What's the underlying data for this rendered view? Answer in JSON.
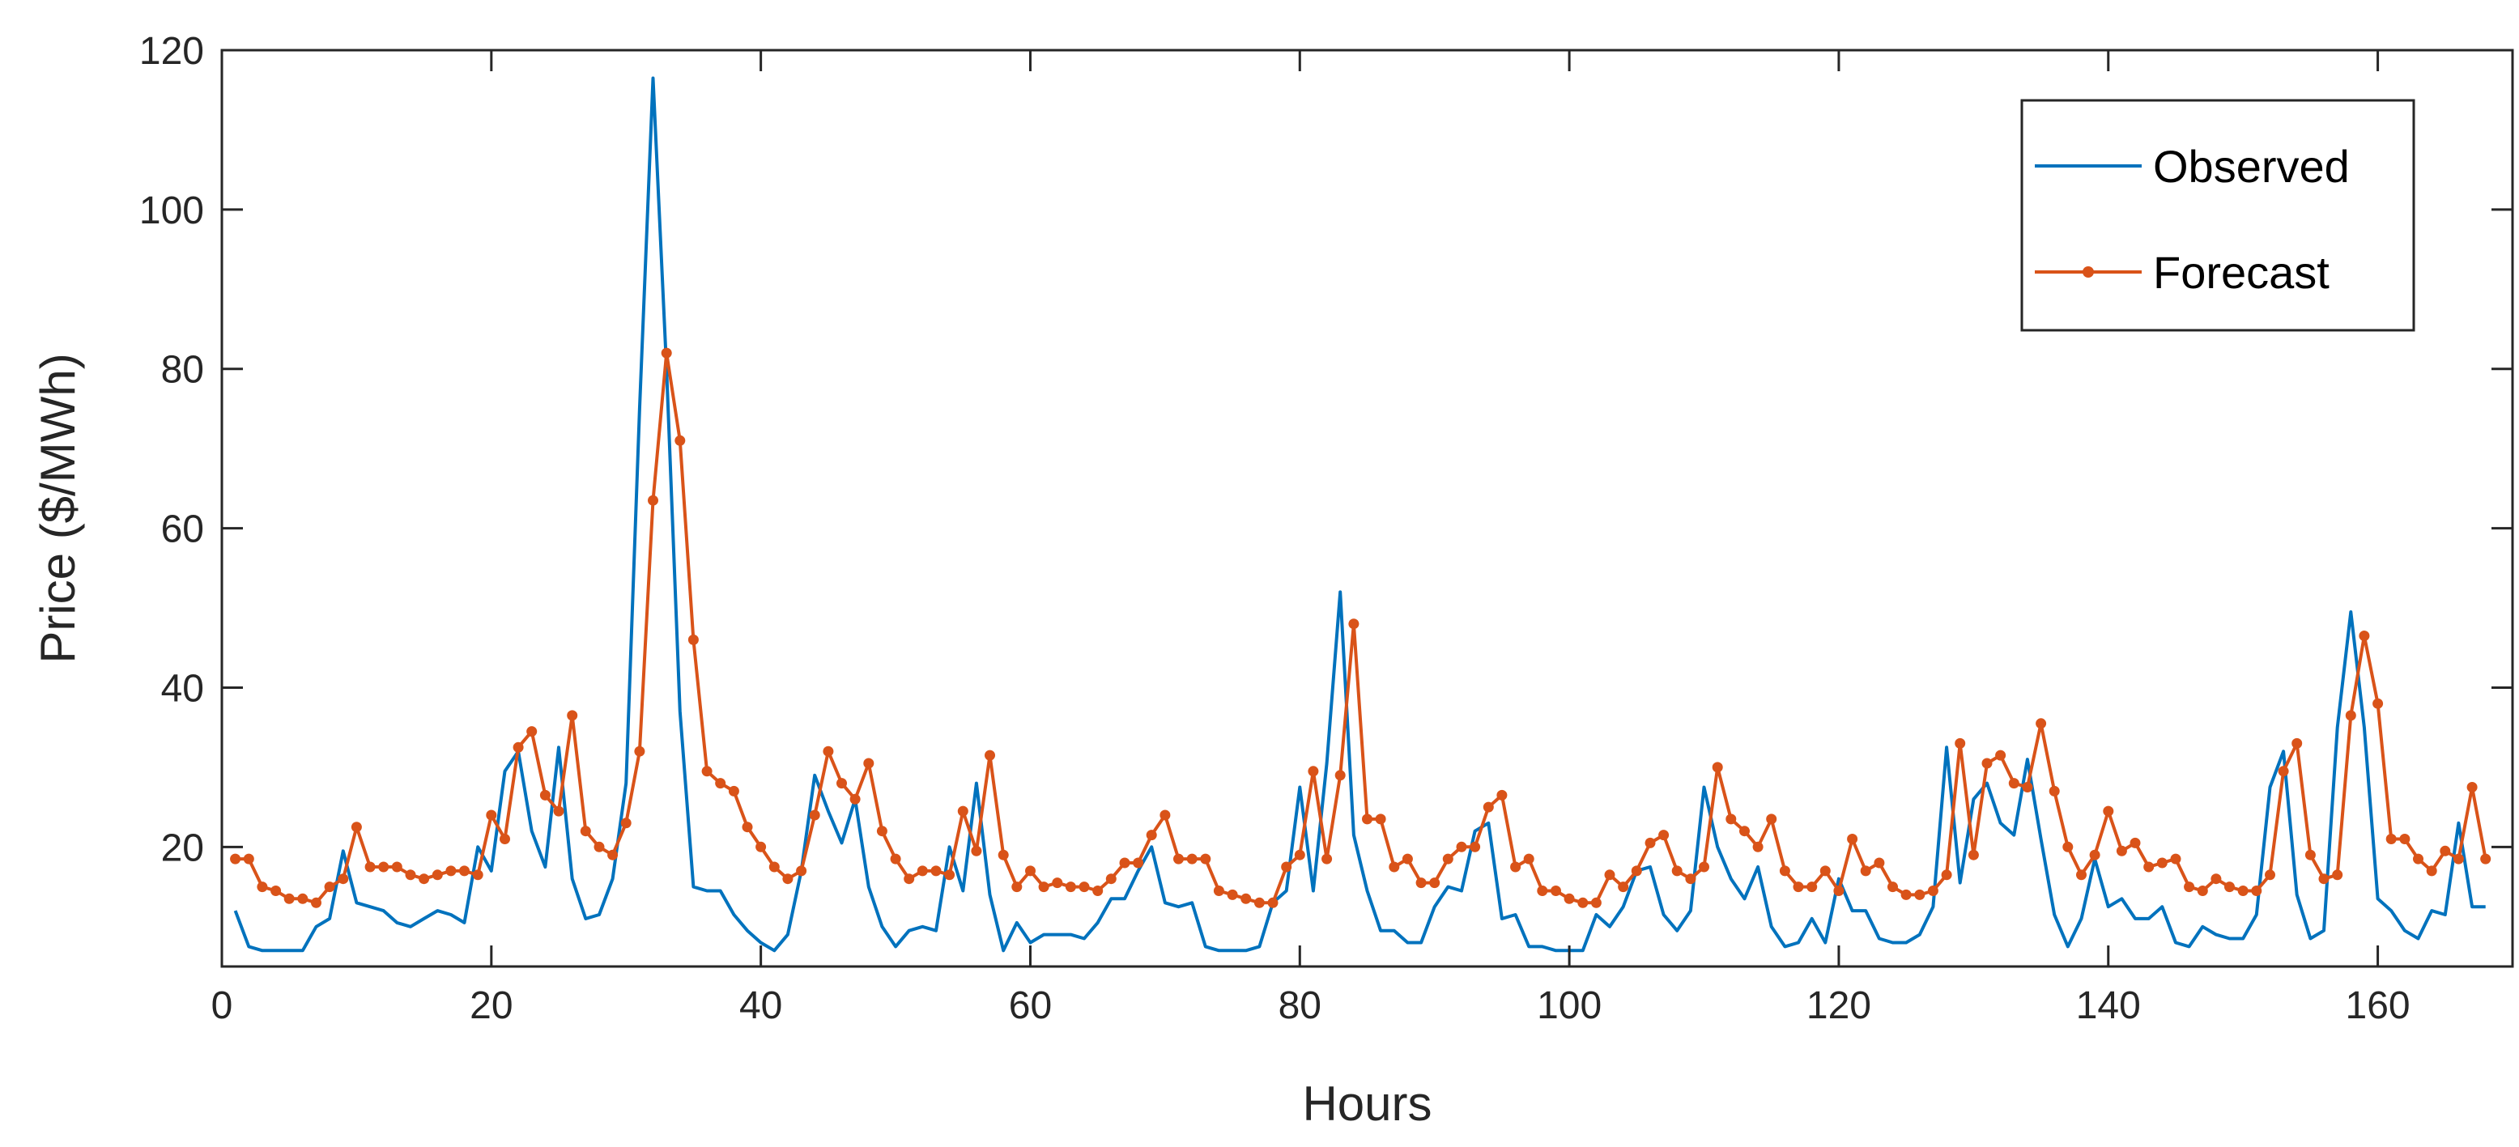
{
  "chart_data": {
    "type": "line",
    "title": "",
    "xlabel": "Hours",
    "ylabel": "Price ($/MWh)",
    "xlim": [
      0,
      170
    ],
    "ylim": [
      5,
      120
    ],
    "xticks": [
      0,
      20,
      40,
      60,
      80,
      100,
      120,
      140,
      160
    ],
    "yticks": [
      20,
      40,
      60,
      80,
      100,
      120
    ],
    "grid": false,
    "legend_position": "top-right",
    "series": [
      {
        "name": "Observed",
        "color": "#0072BD",
        "marker": "none",
        "x_start": 1,
        "x_step": 1,
        "values": [
          12,
          7.5,
          7,
          7,
          7,
          7,
          10,
          11,
          19.5,
          13,
          12.5,
          12,
          10.5,
          10,
          11,
          12,
          11.5,
          10.5,
          20,
          17,
          29.5,
          32,
          22,
          17.5,
          32.5,
          16,
          11,
          11.5,
          16,
          28,
          75,
          116.5,
          80,
          37,
          15,
          14.5,
          14.5,
          11.5,
          9.5,
          8,
          7,
          9,
          17,
          29,
          24.5,
          20.5,
          26,
          15,
          10,
          7.5,
          9.5,
          10,
          9.5,
          20,
          14.5,
          28,
          14,
          7,
          10.5,
          8,
          9,
          9,
          9,
          8.5,
          10.5,
          13.5,
          13.5,
          17,
          20,
          13,
          12.5,
          13,
          7.5,
          7,
          7,
          7,
          7.5,
          13,
          14.5,
          27.5,
          14.5,
          30.5,
          52,
          21.5,
          14.5,
          9.5,
          9.5,
          8,
          8,
          12.5,
          15,
          14.5,
          22,
          23,
          11,
          11.5,
          7.5,
          7.5,
          7,
          7,
          7,
          11.5,
          10,
          12.5,
          17,
          17.5,
          11.5,
          9.5,
          12,
          27.5,
          20,
          16,
          13.5,
          17.5,
          10,
          7.5,
          8,
          11,
          8,
          16,
          12,
          12,
          8.5,
          8,
          8,
          9,
          12.5,
          32.5,
          15.5,
          26,
          28,
          23,
          21.5,
          31,
          21,
          11.5,
          7.5,
          11,
          18.5,
          12.5,
          13.5,
          11,
          11,
          12.5,
          8,
          7.5,
          10,
          9,
          8.5,
          8.5,
          11.5,
          27.5,
          32,
          14,
          8.5,
          9.5,
          35,
          49.5,
          35,
          13.5,
          12,
          9.5,
          8.5,
          12,
          11.5,
          23,
          12.5,
          12.5
        ]
      },
      {
        "name": "Forecast",
        "color": "#D95319",
        "marker": "dot",
        "x_start": 1,
        "x_step": 1,
        "values": [
          18.5,
          18.5,
          15,
          14.5,
          13.5,
          13.5,
          13,
          15,
          16,
          22.5,
          17.5,
          17.5,
          17.5,
          16.5,
          16,
          16.5,
          17,
          17,
          16.5,
          24,
          21,
          32.5,
          34.5,
          26.5,
          24.5,
          36.5,
          22,
          20,
          19,
          23,
          32,
          63.5,
          82,
          71,
          46,
          29.5,
          28,
          27,
          22.5,
          20,
          17.5,
          16,
          17,
          24,
          32,
          28,
          26,
          30.5,
          22,
          18.5,
          16,
          17,
          17,
          16.5,
          24.5,
          19.5,
          31.5,
          19,
          15,
          17,
          15,
          15.5,
          15,
          15,
          14.5,
          16,
          18,
          18,
          21.5,
          24,
          18.5,
          18.5,
          18.5,
          14.5,
          14,
          13.5,
          13,
          13,
          17.5,
          19,
          29.5,
          18.5,
          29,
          48,
          23.5,
          23.5,
          17.5,
          18.5,
          15.5,
          15.5,
          18.5,
          20,
          20,
          25,
          26.5,
          17.5,
          18.5,
          14.5,
          14.5,
          13.5,
          13,
          13,
          16.5,
          15,
          17,
          20.5,
          21.5,
          17,
          16,
          17.5,
          30,
          23.5,
          22,
          20,
          23.5,
          17,
          15,
          15,
          17,
          14.5,
          21,
          17,
          18,
          15,
          14,
          14,
          14.5,
          16.5,
          33,
          19,
          30.5,
          31.5,
          28,
          27.5,
          35.5,
          27,
          20,
          16.5,
          19,
          24.5,
          19.5,
          20.5,
          17.5,
          18,
          18.5,
          15,
          14.5,
          16,
          15,
          14.5,
          14.5,
          16.5,
          29.5,
          33,
          19,
          16,
          16.5,
          36.5,
          46.5,
          38,
          21,
          21,
          18.5,
          17,
          19.5,
          18.5,
          27.5,
          18.5
        ]
      }
    ]
  }
}
